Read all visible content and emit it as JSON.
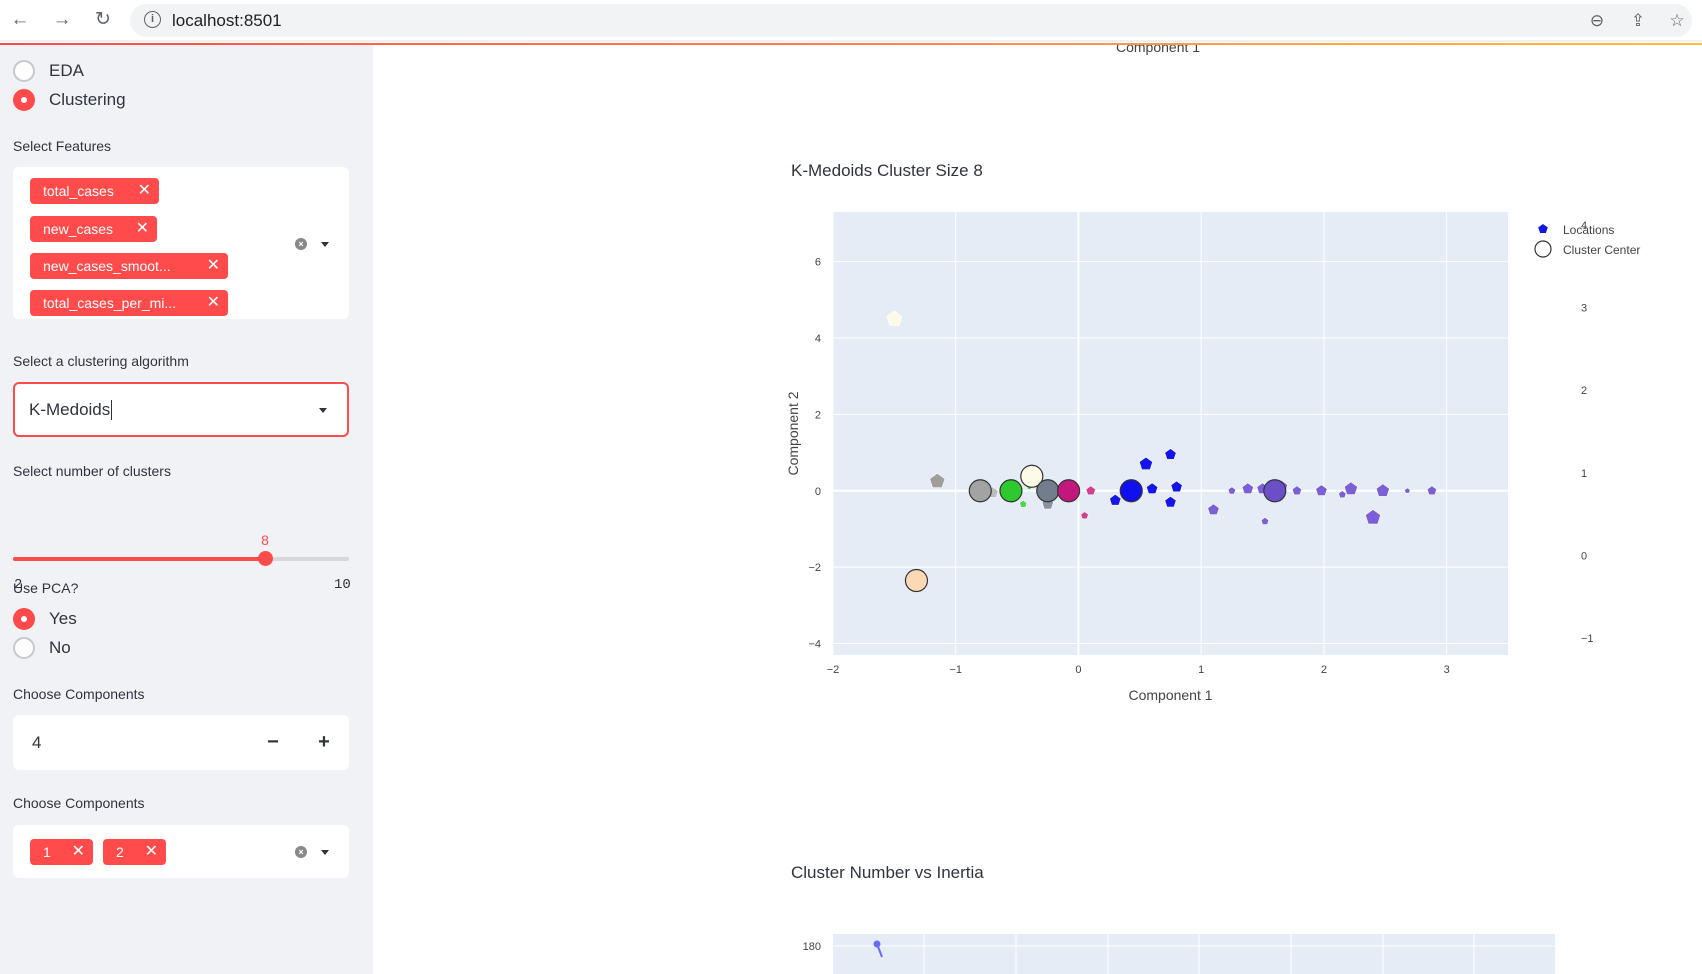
{
  "browser": {
    "url": "localhost:8501",
    "back_icon": "←",
    "forward_icon": "→",
    "reload_icon": "↻",
    "zoom_icon": "⊖",
    "share_icon": "⇪",
    "star_icon": "☆"
  },
  "sidebar": {
    "page_radio": {
      "options": [
        "EDA",
        "Clustering"
      ],
      "selected": "Clustering"
    },
    "features": {
      "label": "Select Features",
      "tags": [
        "total_cases",
        "new_cases",
        "new_cases_smoot...",
        "total_cases_per_mi..."
      ],
      "remove_icon": "✕"
    },
    "algorithm": {
      "label": "Select a clustering algorithm",
      "value": "K-Medoids"
    },
    "clusters": {
      "label": "Select number of clusters",
      "min": "2",
      "max": "10",
      "value": "8"
    },
    "pca": {
      "label": "Use PCA?",
      "options": [
        "Yes",
        "No"
      ],
      "selected": "Yes"
    },
    "components_number": {
      "label": "Choose Components",
      "value": "4",
      "minus": "−",
      "plus": "+"
    },
    "components_select": {
      "label": "Choose Components",
      "tags": [
        "1",
        "2"
      ]
    }
  },
  "main": {
    "top_axis_label": "Component 1",
    "scatter_title": "K-Medoids Cluster Size 8",
    "inertia_title": "Cluster Number vs Inertia",
    "inertia_first_tick": "180"
  },
  "chart_data": [
    {
      "type": "scatter",
      "title": "K-Medoids Cluster Size 8",
      "xlabel": "Component 1",
      "ylabel": "Component 2",
      "xlim": [
        -2,
        3.5
      ],
      "ylim": [
        -4.3,
        7.3
      ],
      "x_ticks": [
        "−2",
        "−1",
        "0",
        "1",
        "2",
        "3"
      ],
      "y_ticks": [
        "−4",
        "−2",
        "0",
        "2",
        "4",
        "6"
      ],
      "grid": true,
      "legend_position": "top-right",
      "legend": [
        "Locations",
        "Cluster Center"
      ],
      "colorbar_ticks": [
        "4",
        "3",
        "2",
        "1",
        "0",
        "−1"
      ],
      "colorbar_range": [
        -1,
        4
      ],
      "series": [
        {
          "name": "Locations",
          "marker": "pentagon",
          "points": [
            {
              "x": -1.5,
              "y": 4.5,
              "size": 8,
              "color": "#fcfbe7"
            },
            {
              "x": -1.15,
              "y": 0.25,
              "size": 8,
              "color": "#9e9e9e"
            },
            {
              "x": -0.7,
              "y": -0.05,
              "size": 6,
              "color": "#bdbdbd"
            },
            {
              "x": -0.45,
              "y": -0.35,
              "size": 4,
              "color": "#55d45a"
            },
            {
              "x": -0.4,
              "y": 0.1,
              "size": 3,
              "color": "#55d45a"
            },
            {
              "x": -0.3,
              "y": 0.05,
              "size": 6,
              "color": "#8a93a2"
            },
            {
              "x": -0.25,
              "y": -0.35,
              "size": 6,
              "color": "#8a93a2"
            },
            {
              "x": 0.05,
              "y": -0.65,
              "size": 4,
              "color": "#d0408f"
            },
            {
              "x": 0.1,
              "y": 0.0,
              "size": 5,
              "color": "#d0408f"
            },
            {
              "x": 0.3,
              "y": -0.25,
              "size": 6,
              "color": "#1515e8"
            },
            {
              "x": 0.55,
              "y": 0.7,
              "size": 7,
              "color": "#1515e8"
            },
            {
              "x": 0.6,
              "y": 0.05,
              "size": 6,
              "color": "#1515e8"
            },
            {
              "x": 0.75,
              "y": 0.95,
              "size": 6,
              "color": "#1515e8"
            },
            {
              "x": 0.75,
              "y": -0.3,
              "size": 6,
              "color": "#1515e8"
            },
            {
              "x": 0.8,
              "y": 0.1,
              "size": 6,
              "color": "#1515e8"
            },
            {
              "x": 1.1,
              "y": -0.5,
              "size": 6,
              "color": "#7b5fd6"
            },
            {
              "x": 1.25,
              "y": 0.0,
              "size": 4,
              "color": "#7b5fd6"
            },
            {
              "x": 1.38,
              "y": 0.05,
              "size": 6,
              "color": "#7b5fd6"
            },
            {
              "x": 1.5,
              "y": 0.05,
              "size": 6,
              "color": "#7b5fd6"
            },
            {
              "x": 1.52,
              "y": -0.8,
              "size": 4,
              "color": "#7b5fd6"
            },
            {
              "x": 1.65,
              "y": 0.1,
              "size": 7,
              "color": "#7b5fd6"
            },
            {
              "x": 1.78,
              "y": 0.0,
              "size": 5,
              "color": "#7b5fd6"
            },
            {
              "x": 1.98,
              "y": 0.0,
              "size": 6,
              "color": "#7b5fd6"
            },
            {
              "x": 2.15,
              "y": -0.1,
              "size": 4,
              "color": "#7b5fd6"
            },
            {
              "x": 2.22,
              "y": 0.05,
              "size": 7,
              "color": "#7b5fd6"
            },
            {
              "x": 2.4,
              "y": -0.7,
              "size": 8,
              "color": "#7b5fd6"
            },
            {
              "x": 2.48,
              "y": 0.0,
              "size": 7,
              "color": "#7b5fd6"
            },
            {
              "x": 2.68,
              "y": 0.0,
              "size": 3,
              "color": "#7b5fd6"
            },
            {
              "x": 2.88,
              "y": 0.0,
              "size": 5,
              "color": "#7b5fd6"
            }
          ]
        },
        {
          "name": "Cluster Center",
          "marker": "circle",
          "points": [
            {
              "x": -1.32,
              "y": -2.35,
              "color": "#fdd8b4"
            },
            {
              "x": -0.8,
              "y": 0.0,
              "color": "#a3a3a3"
            },
            {
              "x": -0.55,
              "y": 0.0,
              "color": "#2ec92e"
            },
            {
              "x": -0.38,
              "y": 0.38,
              "color": "#fdfbe7"
            },
            {
              "x": -0.25,
              "y": 0.0,
              "color": "#727d8e"
            },
            {
              "x": -0.08,
              "y": 0.0,
              "color": "#c2187e"
            },
            {
              "x": 0.43,
              "y": 0.0,
              "color": "#0f0ff0"
            },
            {
              "x": 1.6,
              "y": 0.0,
              "color": "#6a4fc9"
            }
          ]
        }
      ]
    },
    {
      "type": "line",
      "title": "Cluster Number vs Inertia",
      "y_ticks": [
        "180"
      ],
      "grid": true
    }
  ]
}
